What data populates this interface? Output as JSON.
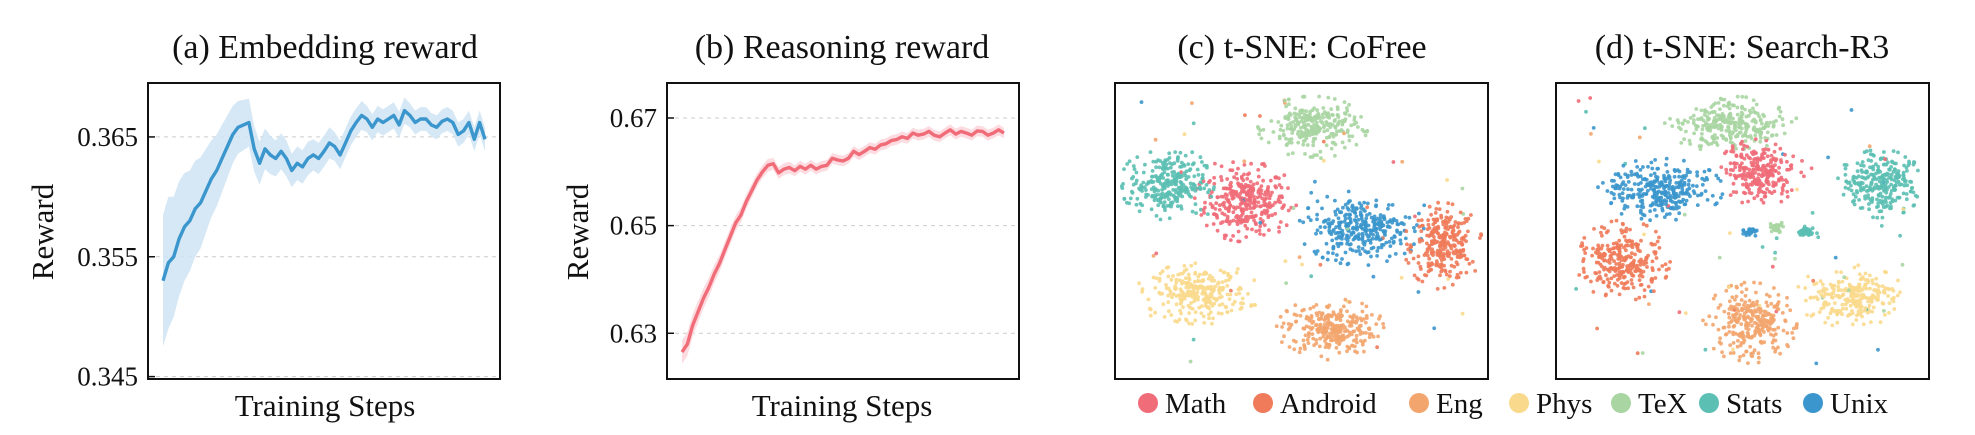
{
  "chart_data": [
    {
      "type": "line",
      "title": "(a) Embedding reward",
      "xlabel": "Training Steps",
      "ylabel": "Reward",
      "ylim": [
        0.3448,
        0.3695
      ],
      "yticks": [
        "0.345",
        "0.355",
        "0.365"
      ],
      "ytick_values": [
        0.345,
        0.355,
        0.365
      ],
      "grid": "horizontal dashed",
      "color": "#3a96cc",
      "band_color": "#cfe4f3",
      "series": [
        {
          "x": [
            0,
            1,
            2,
            3,
            4,
            5,
            6,
            7,
            8,
            9,
            10,
            11,
            12,
            13,
            14,
            15,
            16,
            17,
            18,
            19,
            20,
            21,
            22,
            23,
            24,
            25,
            26,
            27,
            28,
            29,
            30,
            31,
            32,
            33,
            34,
            35,
            36,
            37,
            38,
            39,
            40,
            41,
            42,
            43,
            44,
            45,
            46,
            47,
            48,
            49,
            50,
            51,
            52,
            53,
            54,
            55,
            56,
            57,
            58,
            59,
            60
          ],
          "values": [
            0.353,
            0.3545,
            0.355,
            0.3565,
            0.3575,
            0.358,
            0.359,
            0.3595,
            0.3605,
            0.3615,
            0.3622,
            0.3632,
            0.3642,
            0.3652,
            0.3658,
            0.366,
            0.3662,
            0.364,
            0.3628,
            0.364,
            0.3635,
            0.3632,
            0.3638,
            0.3632,
            0.3622,
            0.3628,
            0.3625,
            0.3632,
            0.3635,
            0.3632,
            0.3638,
            0.3645,
            0.3642,
            0.3635,
            0.3645,
            0.3655,
            0.3662,
            0.3668,
            0.3665,
            0.3658,
            0.3665,
            0.3662,
            0.3665,
            0.3668,
            0.366,
            0.3672,
            0.3668,
            0.3662,
            0.3665,
            0.3665,
            0.366,
            0.3658,
            0.3663,
            0.3665,
            0.3662,
            0.3652,
            0.3655,
            0.3662,
            0.3648,
            0.3662,
            0.3648
          ],
          "band": [
            0.0055,
            0.0055,
            0.005,
            0.0048,
            0.0045,
            0.0042,
            0.004,
            0.0038,
            0.0035,
            0.0032,
            0.003,
            0.0028,
            0.0026,
            0.0024,
            0.0022,
            0.0021,
            0.002,
            0.0019,
            0.0018,
            0.0017,
            0.0016,
            0.0015,
            0.0015,
            0.0015,
            0.0014,
            0.0014,
            0.0014,
            0.0014,
            0.0013,
            0.0013,
            0.0013,
            0.0013,
            0.0012,
            0.0012,
            0.0012,
            0.0012,
            0.0012,
            0.0012,
            0.0011,
            0.0011,
            0.0011,
            0.0011,
            0.0011,
            0.0011,
            0.0011,
            0.0011,
            0.001,
            0.001,
            0.001,
            0.001,
            0.001,
            0.001,
            0.001,
            0.001,
            0.001,
            0.001,
            0.001,
            0.001,
            0.001,
            0.001,
            0.001
          ]
        }
      ]
    },
    {
      "type": "line",
      "title": "(b) Reasoning reward",
      "xlabel": "Training Steps",
      "ylabel": "Reward",
      "ylim": [
        0.6215,
        0.6765
      ],
      "yticks": [
        "0.63",
        "0.65",
        "0.67"
      ],
      "ytick_values": [
        0.63,
        0.65,
        0.67
      ],
      "grid": "horizontal dashed",
      "color": "#f06c78",
      "band_color": "#fbd6da",
      "series": [
        {
          "x": [
            0,
            1,
            2,
            3,
            4,
            5,
            6,
            7,
            8,
            9,
            10,
            11,
            12,
            13,
            14,
            15,
            16,
            17,
            18,
            19,
            20,
            21,
            22,
            23,
            24,
            25,
            26,
            27,
            28,
            29,
            30,
            31,
            32,
            33,
            34,
            35,
            36,
            37,
            38,
            39,
            40,
            41,
            42,
            43,
            44,
            45,
            46,
            47,
            48,
            49,
            50,
            51,
            52,
            53,
            54,
            55,
            56,
            57,
            58,
            59,
            60
          ],
          "values": [
            0.6265,
            0.628,
            0.6315,
            0.634,
            0.6365,
            0.6385,
            0.641,
            0.643,
            0.6455,
            0.648,
            0.6505,
            0.652,
            0.6545,
            0.6565,
            0.6585,
            0.66,
            0.6612,
            0.6615,
            0.6598,
            0.6605,
            0.6608,
            0.6602,
            0.661,
            0.6605,
            0.6612,
            0.6605,
            0.661,
            0.6612,
            0.6625,
            0.6622,
            0.662,
            0.6625,
            0.6638,
            0.6632,
            0.6638,
            0.6645,
            0.6642,
            0.665,
            0.6652,
            0.6658,
            0.666,
            0.6665,
            0.6662,
            0.6672,
            0.6668,
            0.667,
            0.6675,
            0.6668,
            0.6665,
            0.6672,
            0.6678,
            0.667,
            0.6675,
            0.6672,
            0.6668,
            0.6676,
            0.6675,
            0.6668,
            0.6672,
            0.6678,
            0.6672
          ],
          "band": [
            0.0022,
            0.0022,
            0.0021,
            0.002,
            0.0019,
            0.0018,
            0.0017,
            0.0016,
            0.0015,
            0.0015,
            0.0014,
            0.0014,
            0.0013,
            0.0013,
            0.0012,
            0.0012,
            0.0012,
            0.0011,
            0.0011,
            0.0011,
            0.0011,
            0.001,
            0.001,
            0.001,
            0.001,
            0.001,
            0.001,
            0.001,
            0.001,
            0.001,
            0.001,
            0.001,
            0.001,
            0.001,
            0.001,
            0.001,
            0.001,
            0.001,
            0.001,
            0.001,
            0.001,
            0.001,
            0.001,
            0.001,
            0.001,
            0.001,
            0.001,
            0.001,
            0.001,
            0.001,
            0.001,
            0.001,
            0.001,
            0.001,
            0.001,
            0.001,
            0.001,
            0.001,
            0.001,
            0.001,
            0.001
          ]
        }
      ]
    },
    {
      "type": "scatter",
      "title": "(c) t-SNE: CoFree",
      "xlabel": "",
      "ylabel": "",
      "xlim": [
        0,
        100
      ],
      "ylim": [
        0,
        100
      ],
      "axis_ticks": false,
      "clusters": [
        {
          "name": "Math",
          "cx": 35,
          "cy": 60,
          "rx": 13,
          "ry": 13,
          "n": 320
        },
        {
          "name": "Android",
          "cx": 88,
          "cy": 45,
          "rx": 10,
          "ry": 14,
          "n": 280
        },
        {
          "name": "Eng",
          "cx": 58,
          "cy": 17,
          "rx": 14,
          "ry": 10,
          "n": 280
        },
        {
          "name": "Phys",
          "cx": 23,
          "cy": 29,
          "rx": 15,
          "ry": 10,
          "n": 260
        },
        {
          "name": "TeX",
          "cx": 53,
          "cy": 85,
          "rx": 14,
          "ry": 10,
          "n": 260
        },
        {
          "name": "Stats",
          "cx": 14,
          "cy": 66,
          "rx": 12,
          "ry": 12,
          "n": 280
        },
        {
          "name": "Unix",
          "cx": 66,
          "cy": 51,
          "rx": 16,
          "ry": 12,
          "n": 320
        }
      ]
    },
    {
      "type": "scatter",
      "title": "(d) t-SNE: Search-R3",
      "xlabel": "",
      "ylabel": "",
      "xlim": [
        0,
        100
      ],
      "ylim": [
        0,
        100
      ],
      "axis_ticks": false,
      "clusters": [
        {
          "name": "Math",
          "cx": 55,
          "cy": 70,
          "rx": 11,
          "ry": 11,
          "n": 240
        },
        {
          "name": "Android",
          "cx": 18,
          "cy": 40,
          "rx": 12,
          "ry": 13,
          "n": 280
        },
        {
          "name": "Eng",
          "cx": 52,
          "cy": 19,
          "rx": 12,
          "ry": 13,
          "n": 280
        },
        {
          "name": "Phys",
          "cx": 79,
          "cy": 28,
          "rx": 14,
          "ry": 10,
          "n": 240
        },
        {
          "name": "TeX",
          "cx": 47,
          "cy": 86,
          "rx": 17,
          "ry": 9,
          "n": 280
        },
        {
          "name": "Stats",
          "cx": 87,
          "cy": 66,
          "rx": 11,
          "ry": 11,
          "n": 260
        },
        {
          "name": "Unix",
          "cx": 28,
          "cy": 64,
          "rx": 16,
          "ry": 10,
          "n": 300
        },
        {
          "name": "Stats",
          "cx": 67,
          "cy": 50,
          "rx": 3,
          "ry": 2,
          "n": 40
        },
        {
          "name": "TeX",
          "cx": 59,
          "cy": 51,
          "rx": 3,
          "ry": 2,
          "n": 30
        },
        {
          "name": "Unix",
          "cx": 52,
          "cy": 50,
          "rx": 3,
          "ry": 2,
          "n": 30
        }
      ]
    }
  ],
  "legend": {
    "placement": "bottom",
    "items": [
      {
        "label": "Math",
        "color": "#f06c78"
      },
      {
        "label": "Android",
        "color": "#ef7b5a"
      },
      {
        "label": "Eng",
        "color": "#f3a56e"
      },
      {
        "label": "Phys",
        "color": "#f9d98c"
      },
      {
        "label": "TeX",
        "color": "#a8d5a2"
      },
      {
        "label": "Stats",
        "color": "#5bbfb3"
      },
      {
        "label": "Unix",
        "color": "#3a96cc"
      }
    ]
  }
}
